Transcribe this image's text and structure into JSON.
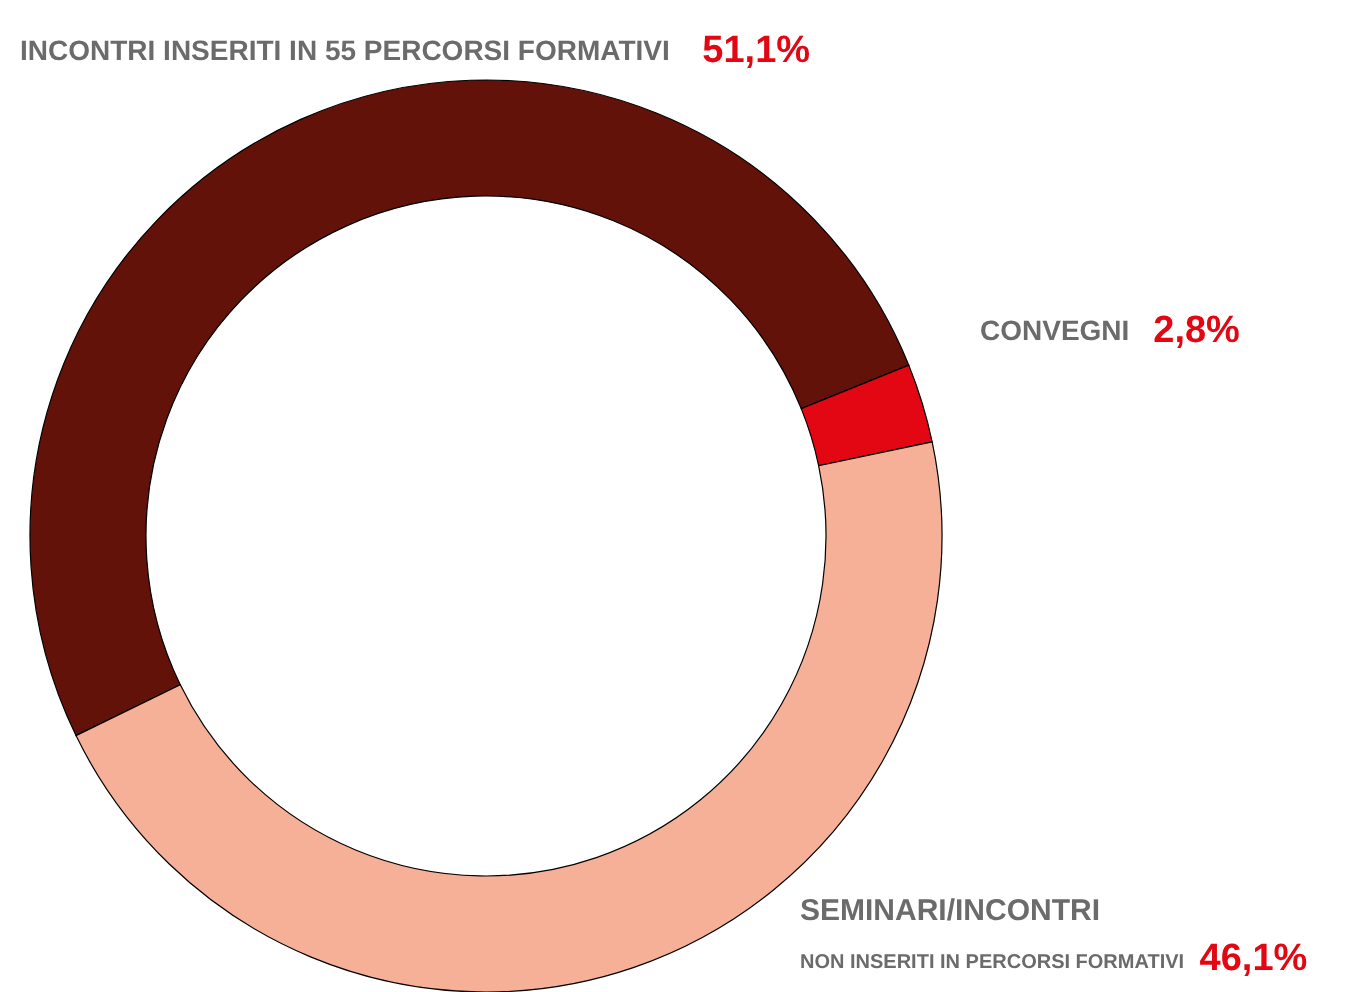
{
  "chart_data": {
    "type": "donut",
    "categories": [
      "INCONTRI INSERITI IN 55 PERCORSI FORMATIVI",
      "CONVEGNI",
      "SEMINARI/INCONTRI\nNON INSERITI IN PERCORSI FORMATIVI"
    ],
    "values": [
      51.1,
      2.8,
      46.1
    ],
    "value_labels": [
      "51,1%",
      "2,8%",
      "46,1%"
    ],
    "colors": [
      "#631209",
      "#e30613",
      "#f6b097"
    ]
  }
}
